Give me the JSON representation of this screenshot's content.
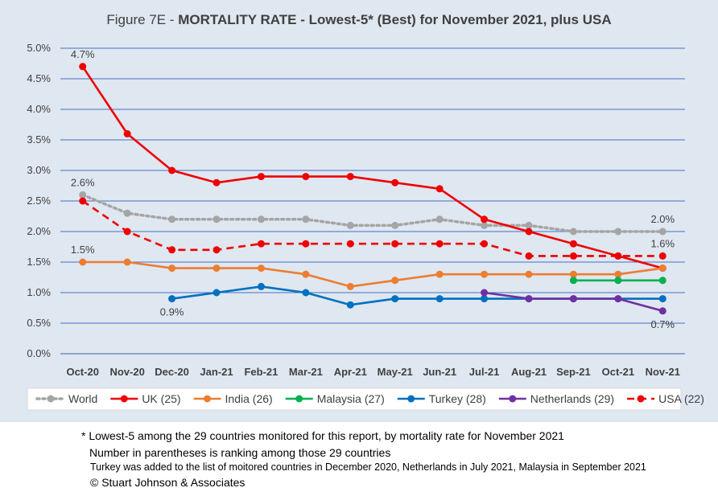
{
  "chart_data": {
    "type": "line",
    "title_prefix": "Figure 7E  - ",
    "title_main": "MORTALITY RATE - Lowest-5* (Best) for November 2021, plus USA",
    "categories": [
      "Oct-20",
      "Nov-20",
      "Dec-20",
      "Jan-21",
      "Feb-21",
      "Mar-21",
      "Apr-21",
      "May-21",
      "Jun-21",
      "Jul-21",
      "Aug-21",
      "Sep-21",
      "Oct-21",
      "Nov-21"
    ],
    "y_ticks": [
      "0.0%",
      "0.5%",
      "1.0%",
      "1.5%",
      "2.0%",
      "2.5%",
      "3.0%",
      "3.5%",
      "4.0%",
      "4.5%",
      "5.0%"
    ],
    "ylim": [
      0,
      5.0
    ],
    "grid": true,
    "legend_position": "bottom",
    "series": [
      {
        "name": "World",
        "color": "#a5a5a5",
        "dash": "dotted",
        "values": [
          2.6,
          2.3,
          2.2,
          2.2,
          2.2,
          2.2,
          2.1,
          2.1,
          2.2,
          2.1,
          2.1,
          2.0,
          2.0,
          2.0
        ]
      },
      {
        "name": "UK (25)",
        "color": "#ee0000",
        "dash": "solid",
        "values": [
          4.7,
          3.6,
          3.0,
          2.8,
          2.9,
          2.9,
          2.9,
          2.8,
          2.7,
          2.2,
          2.0,
          1.8,
          1.6,
          1.4
        ]
      },
      {
        "name": "India (26)",
        "color": "#ed7d31",
        "dash": "solid",
        "values": [
          1.5,
          1.5,
          1.4,
          1.4,
          1.4,
          1.3,
          1.1,
          1.2,
          1.3,
          1.3,
          1.3,
          1.3,
          1.3,
          1.4
        ]
      },
      {
        "name": "Malaysia (27)",
        "color": "#00b050",
        "dash": "solid",
        "values": [
          null,
          null,
          null,
          null,
          null,
          null,
          null,
          null,
          null,
          null,
          null,
          1.2,
          1.2,
          1.2
        ]
      },
      {
        "name": "Turkey (28)",
        "color": "#0070c0",
        "dash": "solid",
        "values": [
          null,
          null,
          0.9,
          1.0,
          1.1,
          1.0,
          0.8,
          0.9,
          0.9,
          0.9,
          0.9,
          0.9,
          0.9,
          0.9
        ]
      },
      {
        "name": "Netherlands (29)",
        "color": "#7030a0",
        "dash": "solid",
        "values": [
          null,
          null,
          null,
          null,
          null,
          null,
          null,
          null,
          null,
          1.0,
          0.9,
          0.9,
          0.9,
          0.7
        ]
      },
      {
        "name": "USA (22)",
        "color": "#ee0000",
        "dash": "dashed",
        "values": [
          2.5,
          2.0,
          1.7,
          1.7,
          1.8,
          1.8,
          1.8,
          1.8,
          1.8,
          1.8,
          1.6,
          1.6,
          1.6,
          1.6
        ]
      }
    ],
    "annotations": [
      {
        "text": "4.7%",
        "series": "UK (25)",
        "index": 0,
        "pos": "above"
      },
      {
        "text": "2.6%",
        "series": "World",
        "index": 0,
        "pos": "above"
      },
      {
        "text": "1.5%",
        "series": "India (26)",
        "index": 0,
        "pos": "above"
      },
      {
        "text": "0.9%",
        "series": "Turkey (28)",
        "index": 2,
        "pos": "below"
      },
      {
        "text": "2.0%",
        "series": "World",
        "index": 13,
        "pos": "above"
      },
      {
        "text": "1.6%",
        "series": "USA (22)",
        "index": 13,
        "pos": "above"
      },
      {
        "text": "0.7%",
        "series": "Netherlands (29)",
        "index": 13,
        "pos": "below"
      }
    ]
  },
  "notes": {
    "line1": "* Lowest-5 among the 29 countries monitored for this report, by mortality rate for November 2021",
    "line2": "Number in parentheses is ranking among those 29 countries",
    "line3": "Turkey was added to the list of moitored countries in December 2020, Netherlands in July 2021,  Malaysia in September 2021",
    "line4": "© Stuart Johnson & Associates"
  }
}
